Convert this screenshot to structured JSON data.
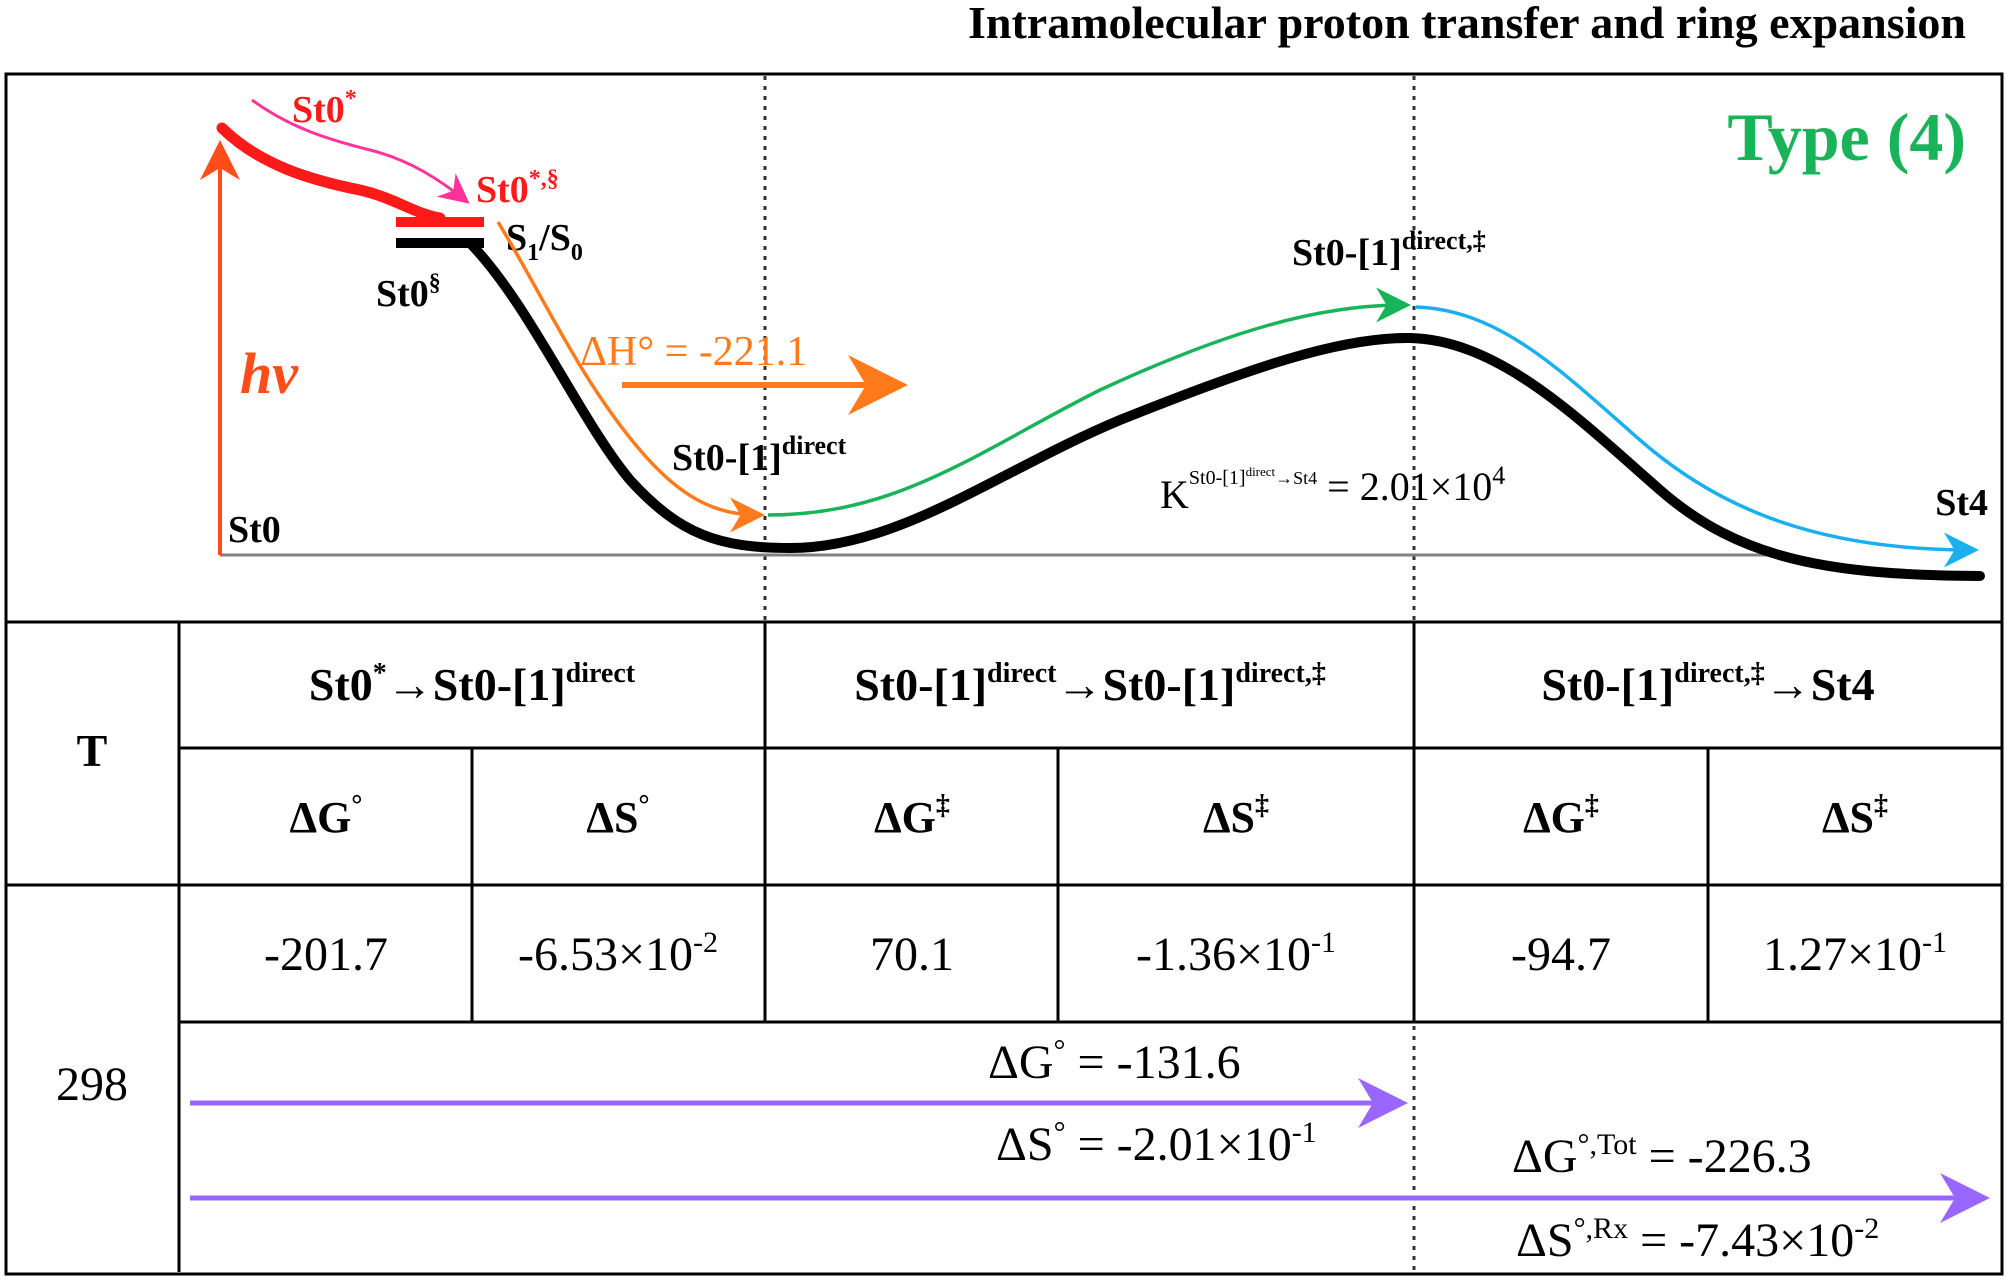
{
  "title": "Intramolecular proton transfer and ring expansion",
  "type_label": "Type (4)",
  "colors": {
    "excited": "#ff1a1a",
    "excited_arrow": "#ff3399",
    "hv": "#ff4d1a",
    "orange": "#ff7a1a",
    "green": "#19b35a",
    "blue": "#1ab0ee",
    "purple": "#9966ff",
    "baseline": "#808080"
  },
  "diagram": {
    "hv": "hν",
    "st0": "St0",
    "st0_star": {
      "base": "St0",
      "sup": "*"
    },
    "st0_star_sect": {
      "base": "St0",
      "sup": "*,§"
    },
    "st0_sect": {
      "base": "St0",
      "sup": "§"
    },
    "s1s0": {
      "s": "S",
      "sub1": "1",
      "slash": "/S",
      "sub0": "0"
    },
    "dH": "ΔH° = -221.1",
    "int": {
      "base": "St0-[1]",
      "sup": "direct"
    },
    "ts": {
      "base": "St0-[1]",
      "sup": "direct,‡"
    },
    "K": {
      "base": "K",
      "sup": "St0-[1]",
      "supsup": "direct",
      "sup_tail": "→St4",
      "eq": " = 2.01×10",
      "exp": "4"
    },
    "st4": "St4"
  },
  "table": {
    "t_header": "T",
    "groups": [
      {
        "a": "St0",
        "a_sup": "*",
        "arrow": "→St0-[1]",
        "b_sup": "direct"
      },
      {
        "a": "St0-[1]",
        "a_sup": "direct",
        "arrow": "→St0-[1]",
        "b_sup": "direct,‡"
      },
      {
        "a": "St0-[1]",
        "a_sup": "direct,‡",
        "arrow": "→St4",
        "b_sup": ""
      }
    ],
    "subheaders": [
      {
        "sym": "ΔG",
        "sup": "°"
      },
      {
        "sym": "ΔS",
        "sup": "°"
      },
      {
        "sym": "ΔG",
        "sup": "‡"
      },
      {
        "sym": "ΔS",
        "sup": "‡"
      },
      {
        "sym": "ΔG",
        "sup": "‡"
      },
      {
        "sym": "ΔS",
        "sup": "‡"
      }
    ],
    "temperature": "298",
    "values": [
      {
        "m": "-201.7",
        "e": ""
      },
      {
        "m": "-6.53×10",
        "e": "-2"
      },
      {
        "m": "70.1",
        "e": ""
      },
      {
        "m": "-1.36×10",
        "e": "-1"
      },
      {
        "m": "-94.7",
        "e": ""
      },
      {
        "m": "1.27×10",
        "e": "-1"
      }
    ],
    "summary": {
      "dG": {
        "lhs": "ΔG",
        "sup": "°",
        "rhs": " = -131.6"
      },
      "dS": {
        "lhs": "ΔS",
        "sup": "°",
        "rhs": " = -2.01×10",
        "exp": "-1"
      },
      "dG_tot": {
        "lhs": "ΔG",
        "sup": "°,Tot",
        "rhs": " = -226.3"
      },
      "dS_rx": {
        "lhs": "ΔS",
        "sup": "°,Rx",
        "rhs": " = -7.43×10",
        "exp": "-2"
      }
    }
  }
}
